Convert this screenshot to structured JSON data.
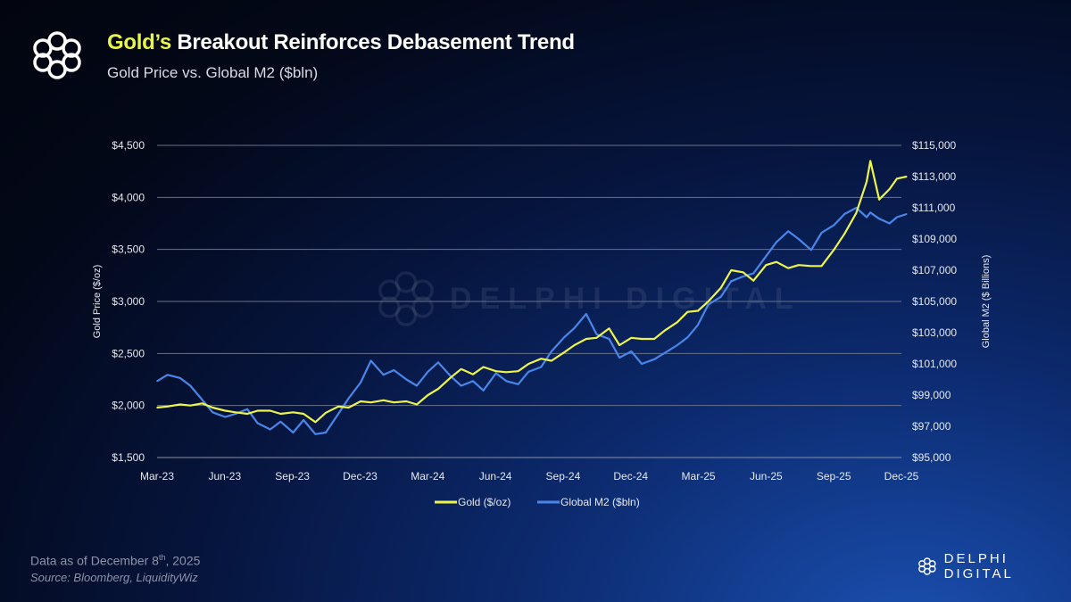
{
  "header": {
    "title_highlight": "Gold’s",
    "title_rest": " Breakout Reinforces Debasement Trend",
    "subtitle": "Gold Price vs. Global M2 ($bln)"
  },
  "footer": {
    "data_as_of_prefix": "Data as of December 8",
    "data_as_of_sup": "th",
    "data_as_of_suffix": ", 2025",
    "source": "Source: Bloomberg, LiquidityWiz",
    "brand": "DELPHI DIGITAL"
  },
  "watermark": "DELPHI DIGITAL",
  "colors": {
    "gold": "#eef54a",
    "m2": "#4a86e8",
    "accent": "#e9f54a"
  },
  "chart_data": {
    "type": "line",
    "title": "Gold’s Breakout Reinforces Debasement Trend",
    "subtitle": "Gold Price vs. Global M2 ($bln)",
    "ylabel_left": "Gold Price ($/oz)",
    "ylabel_right": "Global M2 ($ Billions)",
    "ylim_left": [
      1500,
      4500
    ],
    "ylim_right": [
      95000,
      115000
    ],
    "yticks_left": [
      "$1,500",
      "$2,000",
      "$2,500",
      "$3,000",
      "$3,500",
      "$4,000",
      "$4,500"
    ],
    "yticks_right": [
      "$95,000",
      "$97,000",
      "$99,000",
      "$101,000",
      "$103,000",
      "$105,000",
      "$107,000",
      "$109,000",
      "$111,000",
      "$113,000",
      "$115,000"
    ],
    "xticks": [
      "Mar-23",
      "Jun-23",
      "Sep-23",
      "Dec-23",
      "Mar-24",
      "Jun-24",
      "Sep-24",
      "Dec-24",
      "Mar-25",
      "Jun-25",
      "Sep-25",
      "Dec-25"
    ],
    "xlim": [
      "2023-03-01",
      "2025-12-01"
    ],
    "grid": true,
    "legend_position": "bottom",
    "x": [
      "2023-03-01",
      "2023-03-15",
      "2023-04-01",
      "2023-04-15",
      "2023-05-01",
      "2023-05-15",
      "2023-06-01",
      "2023-06-15",
      "2023-07-01",
      "2023-07-15",
      "2023-08-01",
      "2023-08-15",
      "2023-09-01",
      "2023-09-15",
      "2023-10-01",
      "2023-10-15",
      "2023-11-01",
      "2023-11-15",
      "2023-12-01",
      "2023-12-15",
      "2024-01-01",
      "2024-01-15",
      "2024-02-01",
      "2024-02-15",
      "2024-03-01",
      "2024-03-15",
      "2024-04-01",
      "2024-04-15",
      "2024-05-01",
      "2024-05-15",
      "2024-06-01",
      "2024-06-15",
      "2024-07-01",
      "2024-07-15",
      "2024-08-01",
      "2024-08-15",
      "2024-09-01",
      "2024-09-15",
      "2024-10-01",
      "2024-10-15",
      "2024-11-01",
      "2024-11-15",
      "2024-12-01",
      "2024-12-15",
      "2025-01-01",
      "2025-01-15",
      "2025-02-01",
      "2025-02-15",
      "2025-03-01",
      "2025-03-15",
      "2025-04-01",
      "2025-04-15",
      "2025-05-01",
      "2025-05-15",
      "2025-06-01",
      "2025-06-15",
      "2025-07-01",
      "2025-07-15",
      "2025-08-01",
      "2025-08-15",
      "2025-09-01",
      "2025-09-15",
      "2025-10-01",
      "2025-10-15",
      "2025-10-20",
      "2025-11-01",
      "2025-11-15",
      "2025-11-25",
      "2025-12-08"
    ],
    "series": [
      {
        "name": "Gold ($/oz)",
        "axis": "left",
        "values": [
          1980,
          1990,
          2010,
          2000,
          2020,
          1980,
          1950,
          1935,
          1920,
          1950,
          1950,
          1920,
          1935,
          1920,
          1840,
          1930,
          1990,
          1980,
          2040,
          2030,
          2050,
          2030,
          2040,
          2010,
          2100,
          2160,
          2270,
          2350,
          2300,
          2370,
          2330,
          2320,
          2330,
          2400,
          2450,
          2430,
          2510,
          2580,
          2640,
          2650,
          2740,
          2580,
          2650,
          2640,
          2640,
          2720,
          2800,
          2900,
          2910,
          3000,
          3130,
          3300,
          3280,
          3200,
          3350,
          3380,
          3320,
          3350,
          3340,
          3340,
          3500,
          3650,
          3850,
          4150,
          4350,
          3980,
          4080,
          4180,
          4200
        ]
      },
      {
        "name": "Global M2 ($bln)",
        "axis": "right",
        "values": [
          99900,
          100300,
          100100,
          99600,
          98700,
          97900,
          97600,
          97800,
          98100,
          97200,
          96800,
          97300,
          96600,
          97400,
          96500,
          96600,
          97800,
          98800,
          99800,
          101200,
          100300,
          100600,
          100000,
          99600,
          100500,
          101100,
          100200,
          99600,
          99900,
          99300,
          100400,
          99900,
          99700,
          100500,
          100800,
          101800,
          102700,
          103300,
          104200,
          102900,
          102600,
          101400,
          101800,
          101000,
          101300,
          101700,
          102200,
          102700,
          103500,
          104800,
          105300,
          106300,
          106600,
          106800,
          107900,
          108800,
          109500,
          109000,
          108300,
          109400,
          109900,
          110600,
          111000,
          110400,
          110700,
          110300,
          110000,
          110400,
          110600
        ]
      }
    ]
  }
}
